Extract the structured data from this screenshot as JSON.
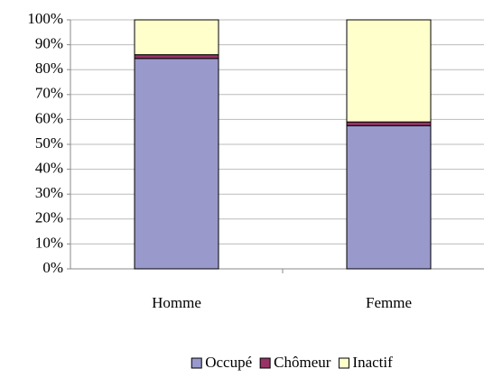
{
  "chart_data": {
    "type": "stacked_bar",
    "categories": [
      "Homme",
      "Femme"
    ],
    "series": [
      {
        "name": "Occupé",
        "color": "#9999cc",
        "values": [
          84.5,
          57.5
        ]
      },
      {
        "name": "Chômeur",
        "color": "#993366",
        "values": [
          1.5,
          1.5
        ]
      },
      {
        "name": "Inactif",
        "color": "#ffffcc",
        "values": [
          14,
          41
        ]
      }
    ],
    "ylim": [
      0,
      100
    ],
    "yticks": [
      {
        "value": 0,
        "label": "0%"
      },
      {
        "value": 10,
        "label": "10%"
      },
      {
        "value": 20,
        "label": "20%"
      },
      {
        "value": 30,
        "label": "30%"
      },
      {
        "value": 40,
        "label": "40%"
      },
      {
        "value": 50,
        "label": "50%"
      },
      {
        "value": 60,
        "label": "60%"
      },
      {
        "value": 70,
        "label": "70%"
      },
      {
        "value": 80,
        "label": "80%"
      },
      {
        "value": 90,
        "label": "90%"
      },
      {
        "value": 100,
        "label": "100%"
      }
    ],
    "grid": true,
    "legend": "bottom"
  }
}
